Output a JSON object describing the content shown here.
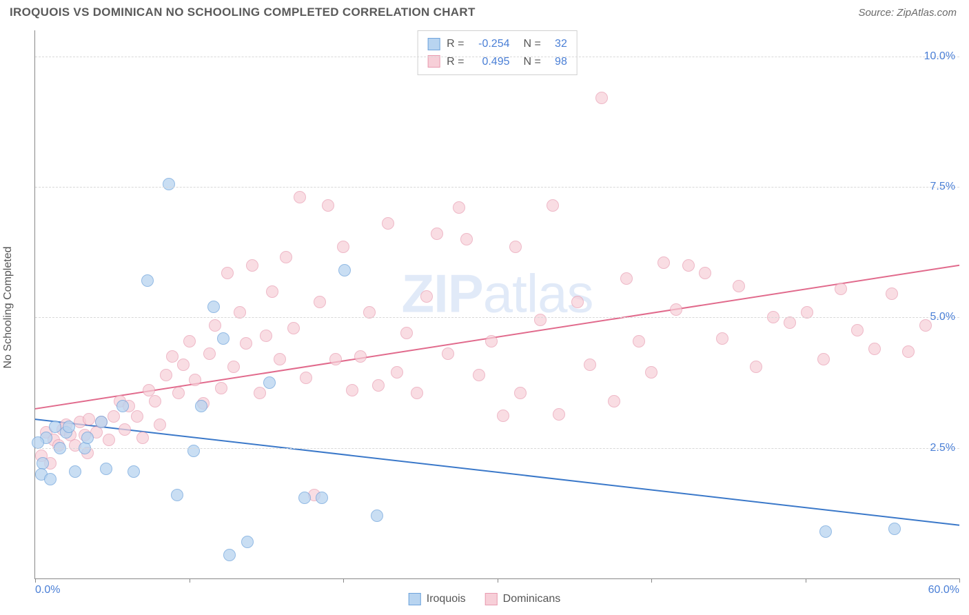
{
  "header": {
    "title": "IROQUOIS VS DOMINICAN NO SCHOOLING COMPLETED CORRELATION CHART",
    "source": "Source: ZipAtlas.com"
  },
  "chart": {
    "type": "scatter",
    "xlim": [
      0,
      60
    ],
    "ylim": [
      0,
      10.5
    ],
    "xtick_positions": [
      0,
      10,
      20,
      30,
      40,
      50,
      60
    ],
    "xtick_labels_shown": {
      "0": "0.0%",
      "60": "60.0%"
    },
    "ytick_positions": [
      2.5,
      5.0,
      7.5,
      10.0
    ],
    "ytick_labels": [
      "2.5%",
      "5.0%",
      "7.5%",
      "10.0%"
    ],
    "ylabel": "No Schooling Completed",
    "grid_color": "#d8d8d8",
    "axis_color": "#888888",
    "background_color": "#ffffff",
    "tick_label_color": "#4a7fd6",
    "label_fontsize": 16,
    "title_fontsize": 17
  },
  "series": {
    "iroquois": {
      "label": "Iroquois",
      "fill": "#b8d4f0",
      "stroke": "#6ea3dc",
      "fill_opacity": 0.75,
      "marker_radius": 9,
      "trend": {
        "x1": 0,
        "y1": 3.05,
        "x2": 60,
        "y2": 1.02,
        "color": "#3a78c9",
        "width": 2
      },
      "R": "-0.254",
      "N": "32",
      "points": [
        [
          0.5,
          2.2
        ],
        [
          0.7,
          2.7
        ],
        [
          0.4,
          2.0
        ],
        [
          1.0,
          1.9
        ],
        [
          1.3,
          2.9
        ],
        [
          1.6,
          2.5
        ],
        [
          2.0,
          2.8
        ],
        [
          2.2,
          2.9
        ],
        [
          2.6,
          2.05
        ],
        [
          3.2,
          2.5
        ],
        [
          3.4,
          2.7
        ],
        [
          4.3,
          3.0
        ],
        [
          4.6,
          2.1
        ],
        [
          5.7,
          3.3
        ],
        [
          6.4,
          2.05
        ],
        [
          7.3,
          5.7
        ],
        [
          8.7,
          7.55
        ],
        [
          9.2,
          1.6
        ],
        [
          10.3,
          2.45
        ],
        [
          10.8,
          3.3
        ],
        [
          11.6,
          5.2
        ],
        [
          12.2,
          4.6
        ],
        [
          12.6,
          0.45
        ],
        [
          13.8,
          0.7
        ],
        [
          15.2,
          3.75
        ],
        [
          17.5,
          1.55
        ],
        [
          18.6,
          1.55
        ],
        [
          20.1,
          5.9
        ],
        [
          22.2,
          1.2
        ],
        [
          51.3,
          0.9
        ],
        [
          55.8,
          0.95
        ],
        [
          0.2,
          2.6
        ]
      ]
    },
    "dominicans": {
      "label": "Dominicans",
      "fill": "#f7cfd8",
      "stroke": "#e89bb0",
      "fill_opacity": 0.7,
      "marker_radius": 9,
      "trend": {
        "x1": 0,
        "y1": 3.25,
        "x2": 60,
        "y2": 6.0,
        "color": "#e16a8c",
        "width": 2
      },
      "R": "0.495",
      "N": "98",
      "points": [
        [
          0.4,
          2.35
        ],
        [
          0.7,
          2.8
        ],
        [
          1.0,
          2.2
        ],
        [
          1.2,
          2.65
        ],
        [
          1.5,
          2.55
        ],
        [
          1.8,
          2.85
        ],
        [
          2.0,
          2.95
        ],
        [
          2.3,
          2.75
        ],
        [
          2.6,
          2.55
        ],
        [
          2.9,
          3.0
        ],
        [
          3.2,
          2.75
        ],
        [
          3.5,
          3.05
        ],
        [
          3.4,
          2.4
        ],
        [
          4.0,
          2.8
        ],
        [
          4.3,
          3.0
        ],
        [
          4.8,
          2.65
        ],
        [
          5.1,
          3.1
        ],
        [
          5.5,
          3.4
        ],
        [
          5.8,
          2.85
        ],
        [
          6.1,
          3.3
        ],
        [
          6.6,
          3.1
        ],
        [
          7.0,
          2.7
        ],
        [
          7.4,
          3.6
        ],
        [
          7.8,
          3.4
        ],
        [
          8.1,
          2.95
        ],
        [
          8.5,
          3.9
        ],
        [
          8.9,
          4.25
        ],
        [
          9.3,
          3.55
        ],
        [
          9.6,
          4.1
        ],
        [
          10.0,
          4.55
        ],
        [
          10.4,
          3.8
        ],
        [
          10.9,
          3.35
        ],
        [
          11.3,
          4.3
        ],
        [
          11.7,
          4.85
        ],
        [
          12.1,
          3.65
        ],
        [
          12.5,
          5.85
        ],
        [
          12.9,
          4.05
        ],
        [
          13.3,
          5.1
        ],
        [
          13.7,
          4.5
        ],
        [
          14.1,
          6.0
        ],
        [
          14.6,
          3.55
        ],
        [
          15.0,
          4.65
        ],
        [
          15.4,
          5.5
        ],
        [
          15.9,
          4.2
        ],
        [
          16.3,
          6.15
        ],
        [
          16.8,
          4.8
        ],
        [
          17.2,
          7.3
        ],
        [
          17.6,
          3.85
        ],
        [
          18.1,
          1.6
        ],
        [
          18.5,
          5.3
        ],
        [
          19.0,
          7.15
        ],
        [
          19.5,
          4.2
        ],
        [
          20.0,
          6.35
        ],
        [
          20.6,
          3.6
        ],
        [
          21.1,
          4.25
        ],
        [
          21.7,
          5.1
        ],
        [
          22.3,
          3.7
        ],
        [
          22.9,
          6.8
        ],
        [
          23.5,
          3.95
        ],
        [
          24.1,
          4.7
        ],
        [
          24.8,
          3.55
        ],
        [
          25.4,
          5.4
        ],
        [
          26.1,
          6.6
        ],
        [
          26.8,
          4.3
        ],
        [
          27.5,
          7.1
        ],
        [
          28.0,
          6.5
        ],
        [
          28.8,
          3.9
        ],
        [
          29.6,
          4.55
        ],
        [
          30.4,
          3.12
        ],
        [
          31.2,
          6.35
        ],
        [
          31.5,
          3.55
        ],
        [
          32.8,
          4.95
        ],
        [
          33.6,
          7.15
        ],
        [
          34.0,
          3.15
        ],
        [
          35.2,
          5.3
        ],
        [
          36.0,
          4.1
        ],
        [
          36.8,
          9.2
        ],
        [
          37.6,
          3.4
        ],
        [
          38.4,
          5.75
        ],
        [
          39.2,
          4.55
        ],
        [
          40.0,
          3.95
        ],
        [
          40.8,
          6.05
        ],
        [
          41.6,
          5.15
        ],
        [
          42.4,
          6.0
        ],
        [
          43.5,
          5.85
        ],
        [
          44.6,
          4.6
        ],
        [
          45.7,
          5.6
        ],
        [
          46.8,
          4.05
        ],
        [
          47.9,
          5.0
        ],
        [
          49.0,
          4.9
        ],
        [
          50.1,
          5.1
        ],
        [
          51.2,
          4.2
        ],
        [
          52.3,
          5.55
        ],
        [
          53.4,
          4.75
        ],
        [
          54.5,
          4.4
        ],
        [
          55.6,
          5.45
        ],
        [
          56.7,
          4.35
        ],
        [
          57.8,
          4.85
        ]
      ]
    }
  },
  "legend_top": {
    "rows": [
      {
        "swatch_fill": "#b8d4f0",
        "swatch_stroke": "#6ea3dc",
        "R_label": "R =",
        "R_value": "-0.254",
        "N_label": "N =",
        "N_value": "32"
      },
      {
        "swatch_fill": "#f7cfd8",
        "swatch_stroke": "#e89bb0",
        "R_label": "R =",
        "R_value": "0.495",
        "N_label": "N =",
        "N_value": "98"
      }
    ]
  },
  "legend_bottom": {
    "items": [
      {
        "swatch_fill": "#b8d4f0",
        "swatch_stroke": "#6ea3dc",
        "label": "Iroquois"
      },
      {
        "swatch_fill": "#f7cfd8",
        "swatch_stroke": "#e89bb0",
        "label": "Dominicans"
      }
    ]
  },
  "watermark": {
    "bold": "ZIP",
    "rest": "atlas"
  }
}
